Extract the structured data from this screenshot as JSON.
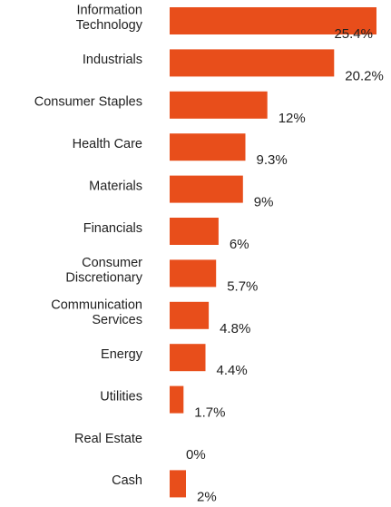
{
  "chart_data": {
    "type": "bar",
    "orientation": "horizontal",
    "categories": [
      [
        "Information",
        "Technology"
      ],
      [
        "Industrials"
      ],
      [
        "Consumer Staples"
      ],
      [
        "Health Care"
      ],
      [
        "Materials"
      ],
      [
        "Financials"
      ],
      [
        "Consumer",
        "Discretionary"
      ],
      [
        "Communication",
        "Services"
      ],
      [
        "Energy"
      ],
      [
        "Utilities"
      ],
      [
        "Real Estate"
      ],
      [
        "Cash"
      ]
    ],
    "values": [
      25.4,
      20.2,
      12,
      9.3,
      9,
      6,
      5.7,
      4.8,
      4.4,
      1.7,
      0,
      2
    ],
    "value_labels": [
      "25.4%",
      "20.2%",
      "12%",
      "9.3%",
      "9%",
      "6%",
      "5.7%",
      "4.8%",
      "4.4%",
      "1.7%",
      "0%",
      "2%"
    ],
    "title": "",
    "xlabel": "",
    "ylabel": "",
    "xlim": [
      0,
      25.4
    ],
    "grid": false,
    "legend": "none",
    "colors": {
      "bar": "#e84e1b",
      "text": "#1f1f1f",
      "background": "#ffffff"
    }
  }
}
